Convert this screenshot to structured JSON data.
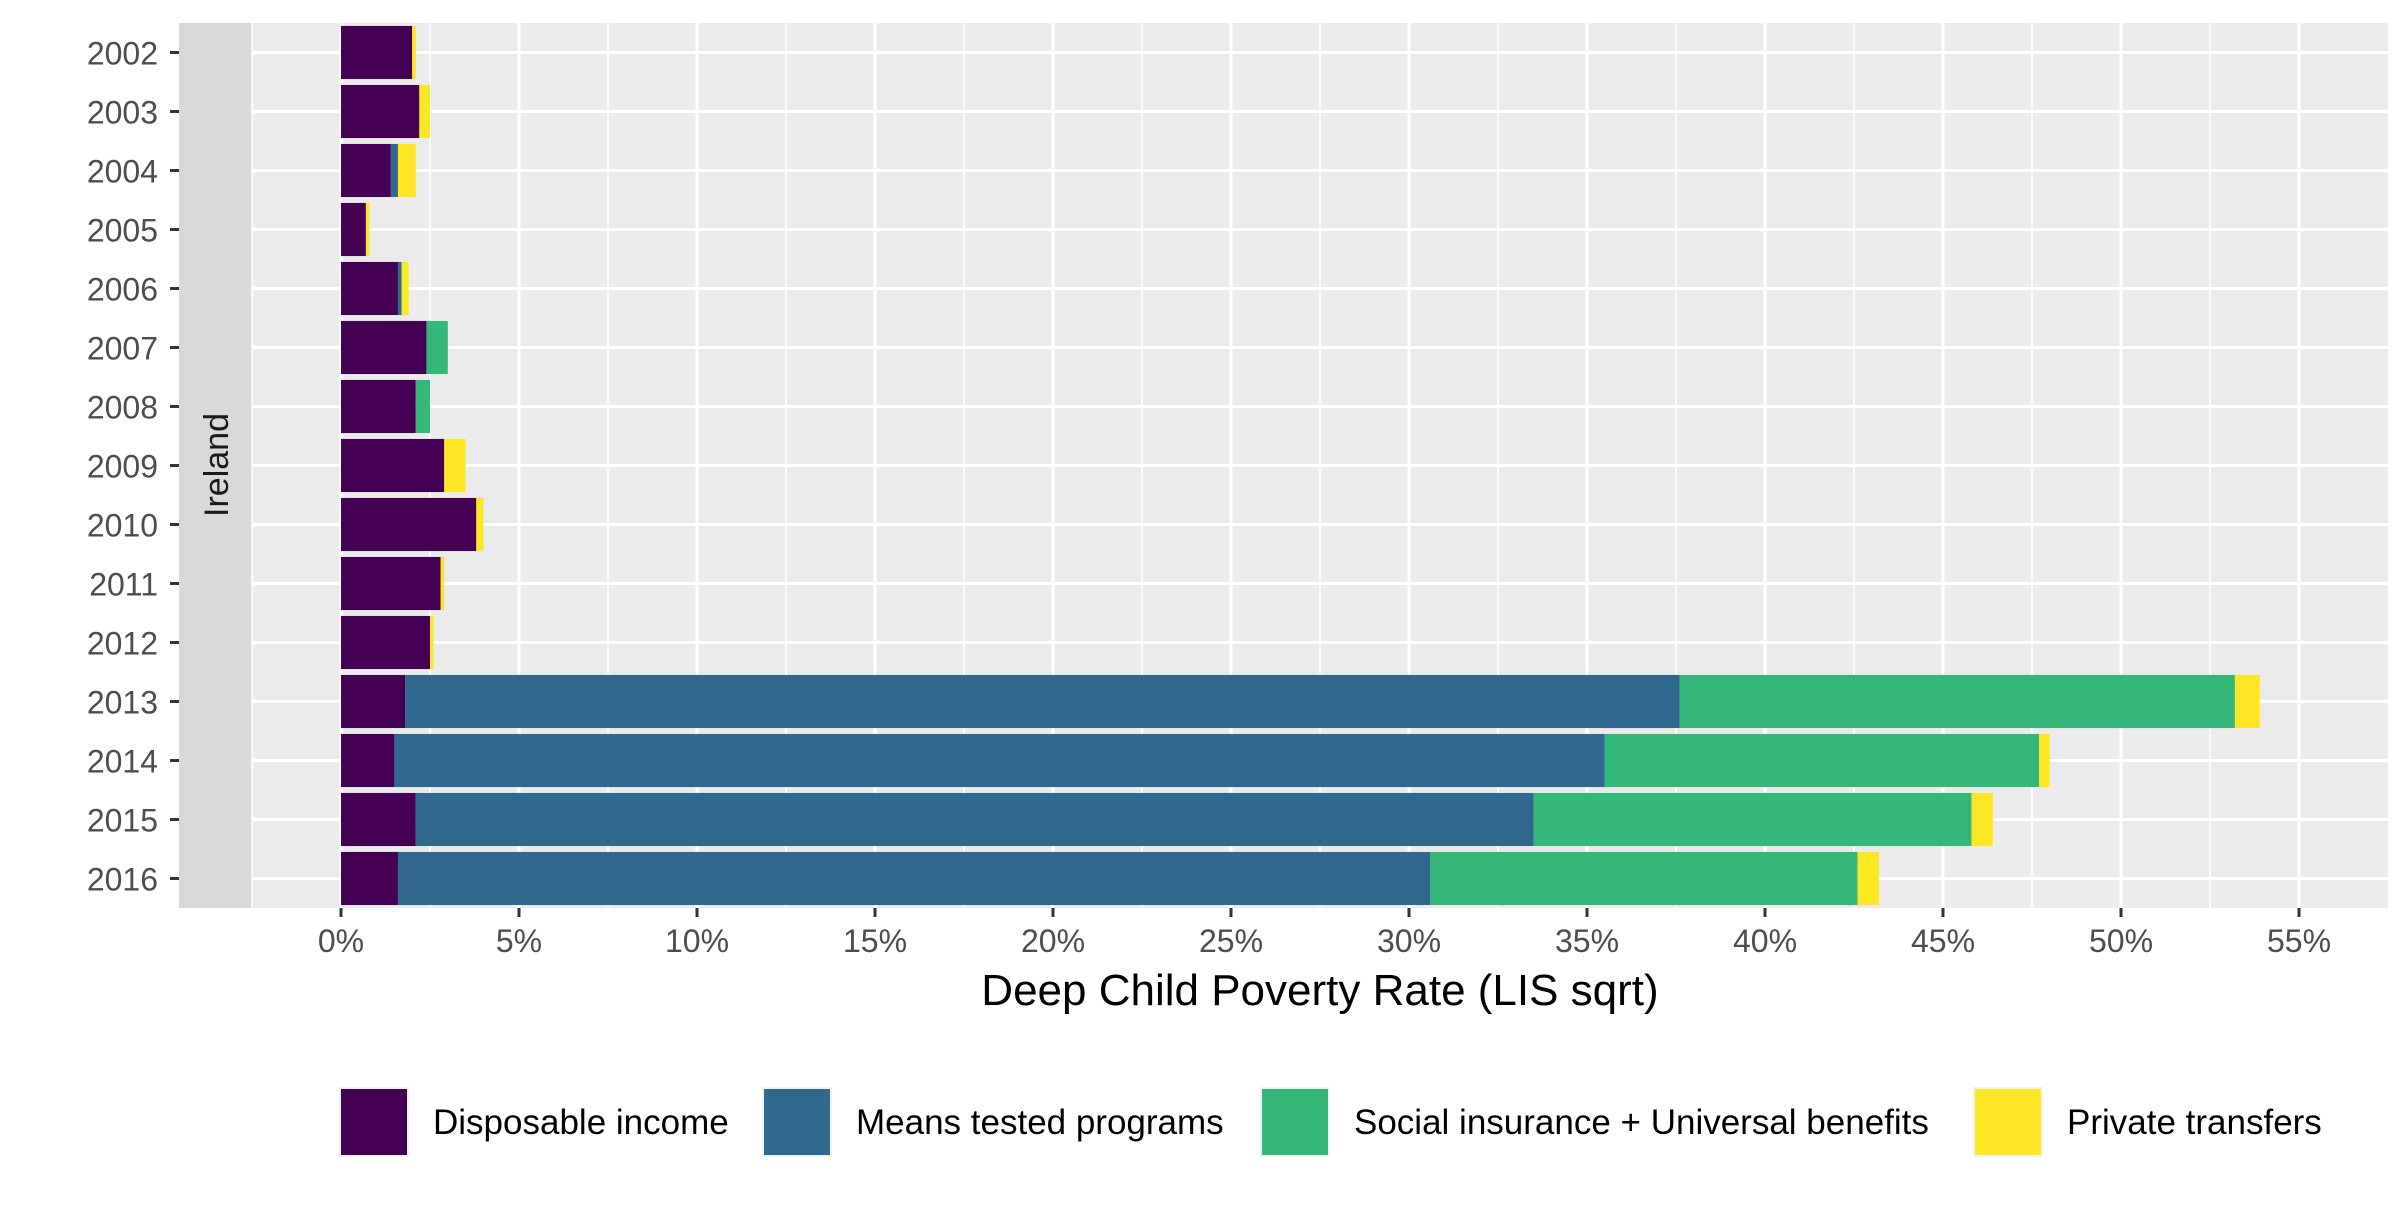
{
  "chart_data": {
    "type": "bar",
    "orientation": "horizontal",
    "stacked": true,
    "facet_label": "Ireland",
    "title": "",
    "xlabel": "Deep Child Poverty Rate (LIS sqrt)",
    "ylabel": "",
    "xlim": [
      -2.5,
      57.5
    ],
    "x_ticks": [
      0,
      5,
      10,
      15,
      20,
      25,
      30,
      35,
      40,
      45,
      50,
      55
    ],
    "x_tick_labels": [
      "0%",
      "5%",
      "10%",
      "15%",
      "20%",
      "25%",
      "30%",
      "35%",
      "40%",
      "45%",
      "50%",
      "55%"
    ],
    "grid": true,
    "legend_position": "bottom",
    "categories": [
      "2002",
      "2003",
      "2004",
      "2005",
      "2006",
      "2007",
      "2008",
      "2009",
      "2010",
      "2011",
      "2012",
      "2013",
      "2014",
      "2015",
      "2016"
    ],
    "series": [
      {
        "name": "Disposable income",
        "color": "#440154",
        "values": [
          2.0,
          2.2,
          1.4,
          0.7,
          1.6,
          2.4,
          2.1,
          2.9,
          3.8,
          2.8,
          2.5,
          1.8,
          1.5,
          2.1,
          1.6
        ]
      },
      {
        "name": "Means tested programs",
        "color": "#31688E",
        "values": [
          0.0,
          0.0,
          0.2,
          0.0,
          0.1,
          0.0,
          0.0,
          0.0,
          0.0,
          0.0,
          0.0,
          35.8,
          34.0,
          31.4,
          29.0
        ]
      },
      {
        "name": "Social insurance + Universal benefits",
        "color": "#35B779",
        "values": [
          0.0,
          0.0,
          0.0,
          0.0,
          0.0,
          0.6,
          0.4,
          0.0,
          0.0,
          0.0,
          0.0,
          15.6,
          12.2,
          12.3,
          12.0
        ]
      },
      {
        "name": "Private transfers",
        "color": "#FDE725",
        "values": [
          0.1,
          0.3,
          0.5,
          0.1,
          0.2,
          0.0,
          0.0,
          0.6,
          0.2,
          0.1,
          0.1,
          0.7,
          0.3,
          0.6,
          0.6
        ]
      }
    ]
  }
}
